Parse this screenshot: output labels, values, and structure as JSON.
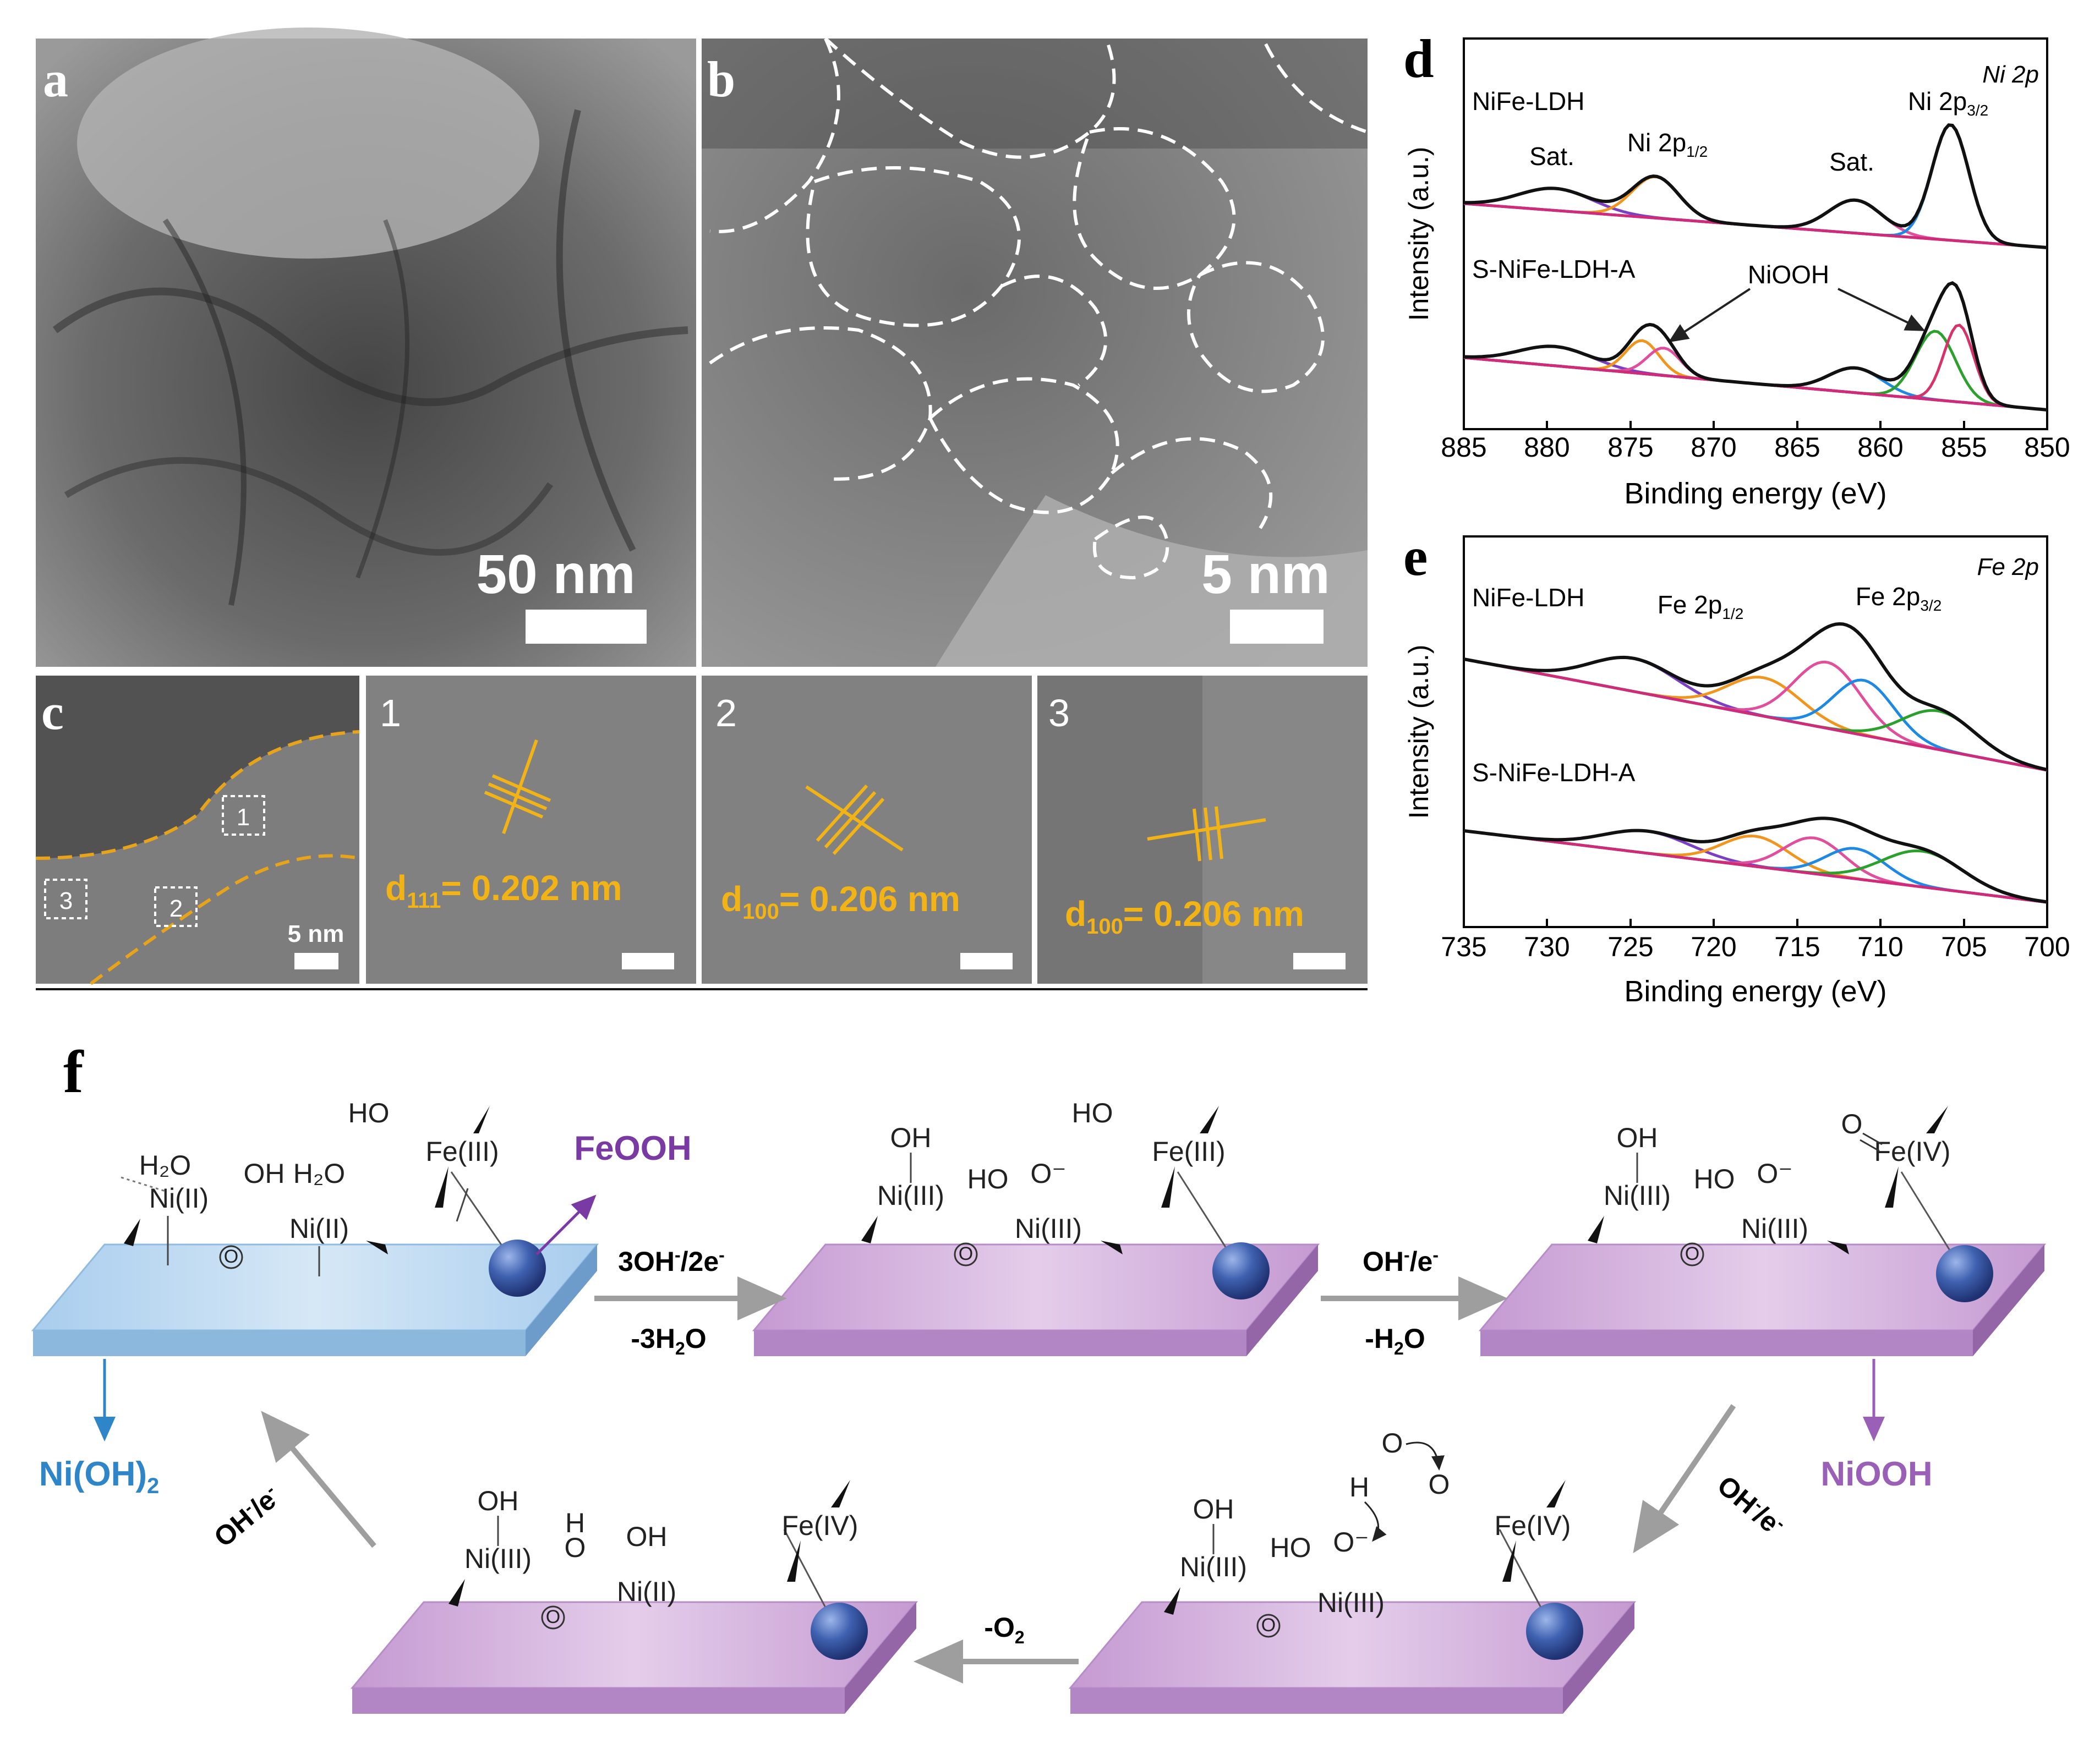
{
  "panels": {
    "a": {
      "letter": "a",
      "scale": "50 nm"
    },
    "b": {
      "letter": "b",
      "scale": "5 nm"
    },
    "c": {
      "letter": "c",
      "scale": "5 nm",
      "region_labels": [
        "1",
        "2",
        "3"
      ],
      "insets": [
        {
          "num": "1",
          "d_sub": "111",
          "d_value": "= 0.202 nm"
        },
        {
          "num": "2",
          "d_sub": "100",
          "d_value": "= 0.206 nm"
        },
        {
          "num": "3",
          "d_sub": "100",
          "d_value": "= 0.206 nm"
        }
      ]
    }
  },
  "chart_data": [
    {
      "type": "line",
      "panel": "d",
      "corner_label": "Ni 2p",
      "xlabel": "Binding energy (eV)",
      "ylabel": "Intensity (a.u.)",
      "xlim": [
        885,
        850
      ],
      "xticks": [
        "885",
        "880",
        "875",
        "870",
        "865",
        "860",
        "855",
        "850"
      ],
      "series_labels": [
        "NiFe-LDH",
        "S-NiFe-LDH-A"
      ],
      "peak_labels": {
        "sat1": "Sat.",
        "ni12": "Ni 2p",
        "ni12_sub": "1/2",
        "sat2": "Sat.",
        "ni32": "Ni 2p",
        "ni32_sub": "3/2",
        "niooh": "NiOOH"
      },
      "peaks_eV": {
        "NiFe-LDH": [
          879.5,
          873.5,
          861.5,
          855.8
        ],
        "S-NiFe-LDH-A": [
          879.5,
          874.3,
          873.0,
          861.5,
          856.7,
          855.3
        ]
      }
    },
    {
      "type": "line",
      "panel": "e",
      "corner_label": "Fe 2p",
      "xlabel": "Binding energy (eV)",
      "ylabel": "Intensity (a.u.)",
      "xlim": [
        735,
        700
      ],
      "xticks": [
        "735",
        "730",
        "725",
        "720",
        "715",
        "710",
        "705",
        "700"
      ],
      "series_labels": [
        "NiFe-LDH",
        "S-NiFe-LDH-A"
      ],
      "peak_labels": {
        "fe12": "Fe 2p",
        "fe12_sub": "1/2",
        "fe32": "Fe 2p",
        "fe32_sub": "3/2"
      },
      "peaks_eV": {
        "NiFe-LDH": [
          724.8,
          717.0,
          713.2,
          711.0,
          706.5
        ],
        "S-NiFe-LDH-A": [
          724.0,
          717.5,
          714.0,
          711.5,
          707.5
        ]
      }
    }
  ],
  "scheme": {
    "letter": "f",
    "species": {
      "feooh": "FeOOH",
      "nioh2": "Ni(OH)",
      "nioh2_sub": "2",
      "niooh": "NiOOH"
    },
    "steps": [
      {
        "top": "3OH",
        "top_sup": "-",
        "top_tail": "/2e",
        "top_tail_sup": "-",
        "bottom": "-3H",
        "bottom_sub": "2",
        "bottom_tail": "O"
      },
      {
        "top": "OH",
        "top_sup": "-",
        "top_tail": "/e",
        "top_tail_sup": "-",
        "bottom": "-H",
        "bottom_sub": "2",
        "bottom_tail": "O"
      },
      {
        "label": "OH",
        "label_sup": "-",
        "label_tail": "/e",
        "label_tail_sup": "-"
      },
      {
        "label": "-O",
        "label_sub": "2"
      },
      {
        "label": "OH",
        "label_sup": "-",
        "label_tail": "/e",
        "label_tail_sup": "-"
      }
    ],
    "colors": {
      "ldh": "#b3d3ef",
      "ooh": "#c7a3d3",
      "feooh": "#7a3aa3",
      "nioh2": "#2e86c8",
      "niooh": "#9a5fb6",
      "sphere": "#3f61b0"
    }
  }
}
